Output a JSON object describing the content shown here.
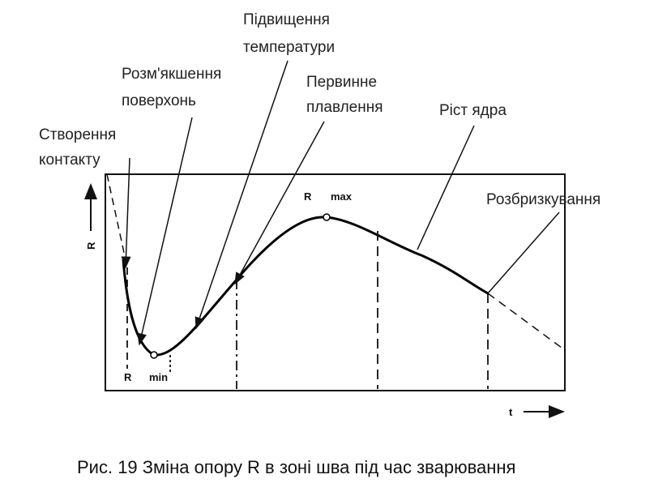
{
  "labels": {
    "contact": [
      "Створення",
      "контакту"
    ],
    "softening": [
      "Розм'якшення",
      "поверхонь"
    ],
    "temperature": [
      "Підвищення",
      "температури"
    ],
    "melting": [
      "Первинне",
      "плавлення"
    ],
    "growth": "Ріст ядра",
    "splash": "Розбризкування"
  },
  "axes": {
    "y": "R",
    "x": "t"
  },
  "points": {
    "rmin": {
      "symbol": "R",
      "sub": "min"
    },
    "rmax": {
      "symbol": "R",
      "sub": "max"
    }
  },
  "caption": "Рис. 19 Зміна опору R в зоні шва під час зварювання"
}
